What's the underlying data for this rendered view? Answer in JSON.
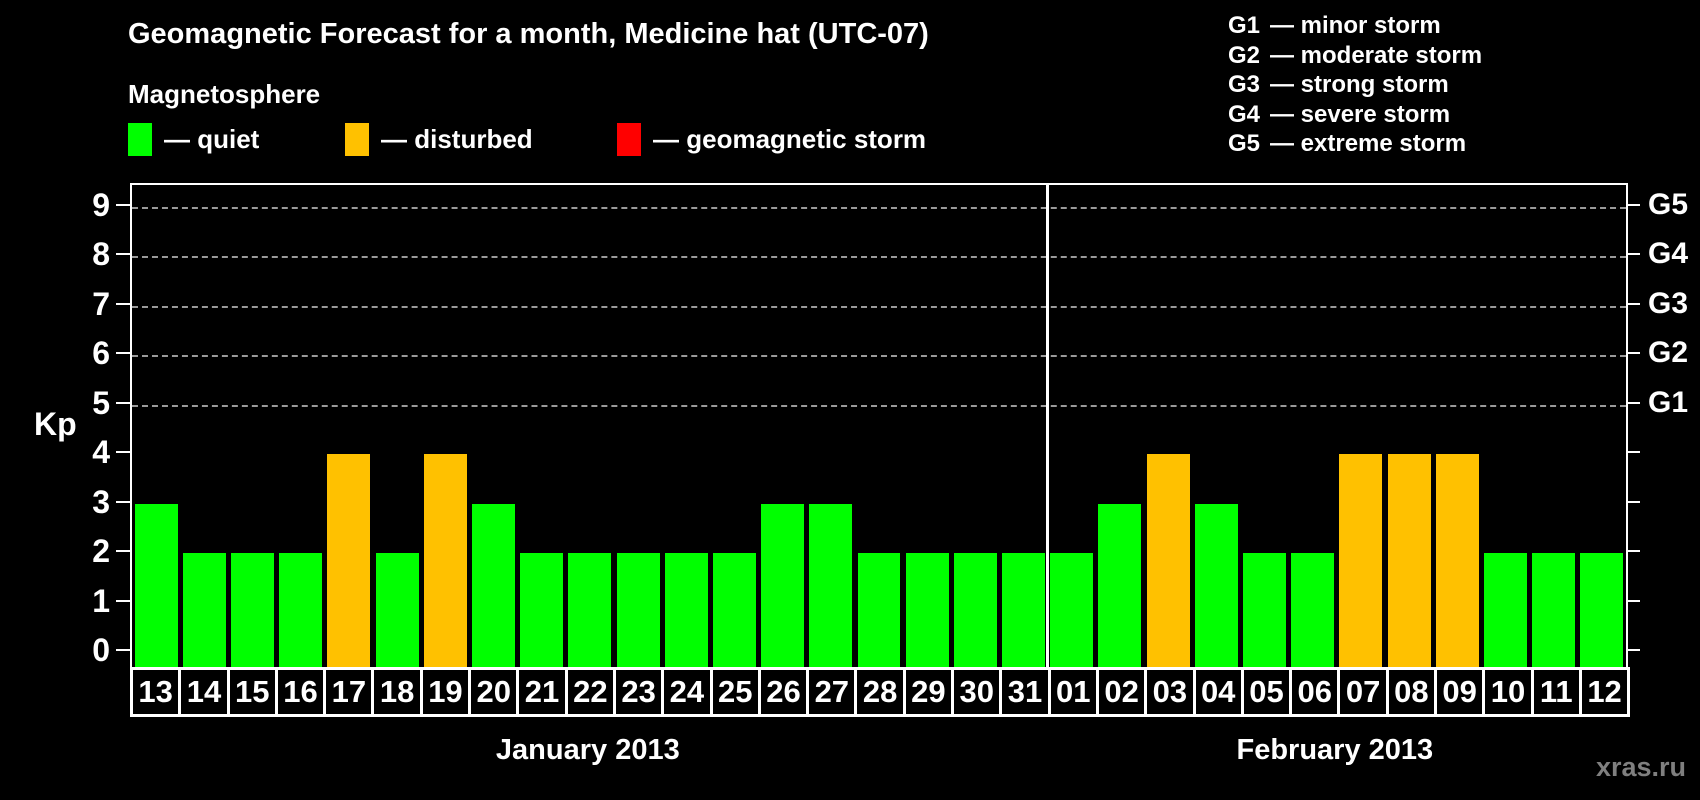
{
  "title": "Geomagnetic Forecast for a month, Medicine hat (UTC-07)",
  "subtitle": "Magnetosphere",
  "legend": {
    "items": [
      {
        "status": "quiet",
        "label": "— quiet",
        "color": "#00ff00"
      },
      {
        "status": "disturbed",
        "label": "— disturbed",
        "color": "#ffc100"
      },
      {
        "status": "storm",
        "label": "— geomagnetic storm",
        "color": "#ff0000"
      }
    ]
  },
  "storm_scale": {
    "items": [
      {
        "code": "G1",
        "label": "— minor storm"
      },
      {
        "code": "G2",
        "label": "— moderate storm"
      },
      {
        "code": "G3",
        "label": "— strong storm"
      },
      {
        "code": "G4",
        "label": "— severe storm"
      },
      {
        "code": "G5",
        "label": "— extreme storm"
      }
    ]
  },
  "axis": {
    "y_title": "Kp",
    "y_ticks": [
      0,
      1,
      2,
      3,
      4,
      5,
      6,
      7,
      8,
      9
    ],
    "g_levels": [
      {
        "code": "G1",
        "kp": 5
      },
      {
        "code": "G2",
        "kp": 6
      },
      {
        "code": "G3",
        "kp": 7
      },
      {
        "code": "G4",
        "kp": 8
      },
      {
        "code": "G5",
        "kp": 9
      }
    ]
  },
  "watermark": "xras.ru",
  "chart_data": {
    "type": "bar",
    "title": "Geomagnetic Forecast for a month, Medicine hat (UTC-07)",
    "xlabel": "",
    "ylabel": "Kp",
    "ylim": [
      0,
      9
    ],
    "grid": "horizontal dashed lines at Kp 5,6,7,8,9 (G1–G5)",
    "legend_position": "top-left",
    "categories": [
      "13",
      "14",
      "15",
      "16",
      "17",
      "18",
      "19",
      "20",
      "21",
      "22",
      "23",
      "24",
      "25",
      "26",
      "27",
      "28",
      "29",
      "30",
      "31",
      "01",
      "02",
      "03",
      "04",
      "05",
      "06",
      "07",
      "08",
      "09",
      "10",
      "11",
      "12"
    ],
    "values": [
      3,
      2,
      2,
      2,
      4,
      2,
      4,
      3,
      2,
      2,
      2,
      2,
      2,
      3,
      3,
      2,
      2,
      2,
      2,
      2,
      3,
      4,
      3,
      2,
      2,
      4,
      4,
      4,
      2,
      2,
      2
    ],
    "statuses": [
      "quiet",
      "quiet",
      "quiet",
      "quiet",
      "disturbed",
      "quiet",
      "disturbed",
      "quiet",
      "quiet",
      "quiet",
      "quiet",
      "quiet",
      "quiet",
      "quiet",
      "quiet",
      "quiet",
      "quiet",
      "quiet",
      "quiet",
      "quiet",
      "quiet",
      "disturbed",
      "quiet",
      "quiet",
      "quiet",
      "disturbed",
      "disturbed",
      "disturbed",
      "quiet",
      "quiet",
      "quiet"
    ],
    "status_colors": {
      "quiet": "#00ff00",
      "disturbed": "#ffc100",
      "storm": "#ff0000"
    },
    "months": [
      {
        "label": "January 2013",
        "days": 19
      },
      {
        "label": "February 2013",
        "days": 12
      }
    ]
  }
}
